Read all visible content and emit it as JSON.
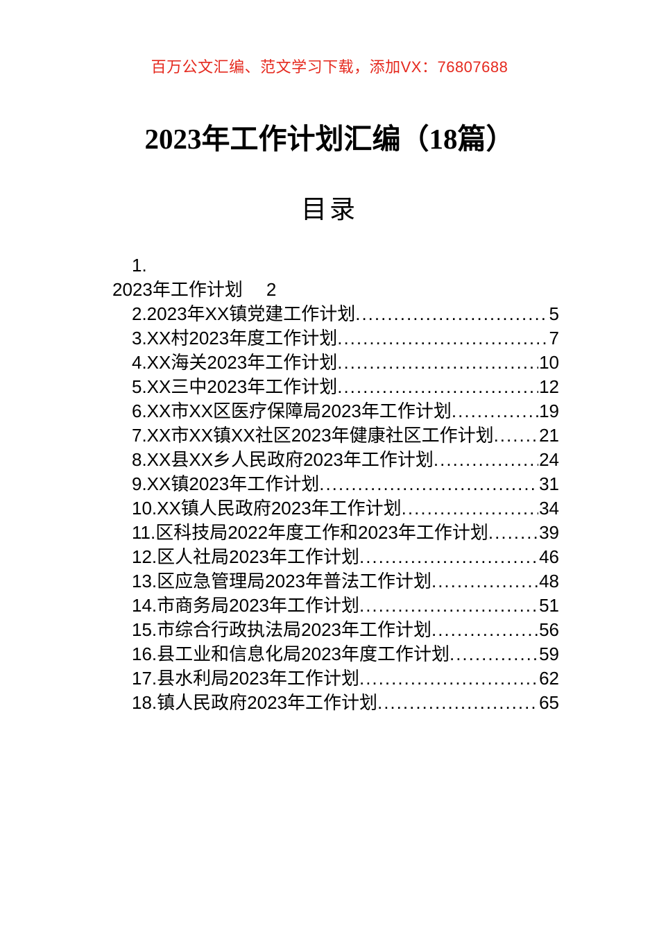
{
  "notice": {
    "text": "百万公文汇编、范文学习下载，添加VX：76807688",
    "color": "#e5291e"
  },
  "title": "2023年工作计划汇编（18篇）",
  "toc": {
    "heading": "目录",
    "first_entry": {
      "number": "1.",
      "title": "2023年工作计划",
      "page": "2"
    },
    "entries": [
      {
        "label": "2.2023年XX镇党建工作计划",
        "page": "5"
      },
      {
        "label": "3.XX村2023年度工作计划",
        "page": "7"
      },
      {
        "label": "4.XX海关2023年工作计划",
        "page": "10"
      },
      {
        "label": "5.XX三中2023年工作计划",
        "page": "12"
      },
      {
        "label": "6.XX市XX区医疗保障局2023年工作计划",
        "page": "19"
      },
      {
        "label": "7.XX市XX镇XX社区2023年健康社区工作计划",
        "page": "21"
      },
      {
        "label": "8.XX县XX乡人民政府2023年工作计划",
        "page": "24"
      },
      {
        "label": "9.XX镇2023年工作计划",
        "page": "31"
      },
      {
        "label": "10.XX镇人民政府2023年工作计划",
        "page": "34"
      },
      {
        "label": "11.区科技局2022年度工作和2023年工作计划",
        "page": "39"
      },
      {
        "label": "12.区人社局2023年工作计划",
        "page": "46"
      },
      {
        "label": "13.区应急管理局2023年普法工作计划",
        "page": "48"
      },
      {
        "label": "14.市商务局2023年工作计划",
        "page": "51"
      },
      {
        "label": "15.市综合行政执法局2023年工作计划",
        "page": "56"
      },
      {
        "label": "16.县工业和信息化局2023年度工作计划",
        "page": "59"
      },
      {
        "label": "17.县水利局2023年工作计划",
        "page": "62"
      },
      {
        "label": "18.镇人民政府2023年工作计划",
        "page": "65"
      }
    ]
  }
}
